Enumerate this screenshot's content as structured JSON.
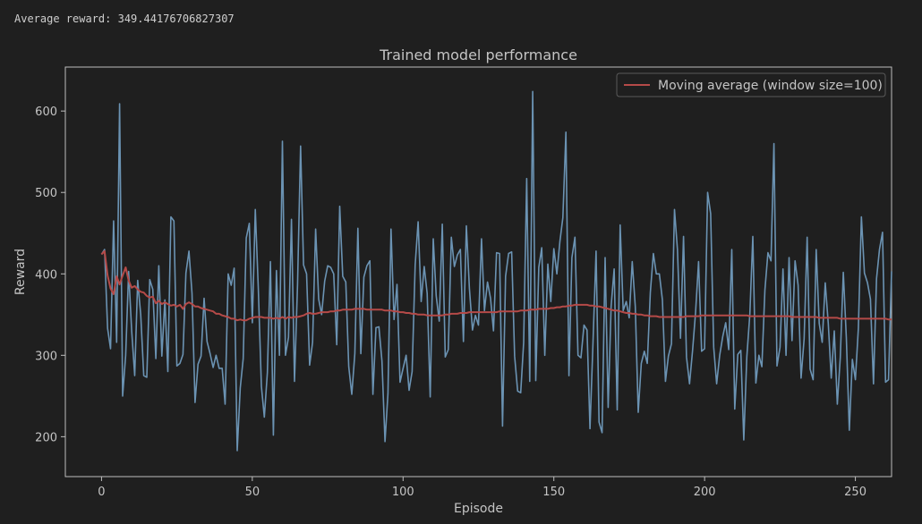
{
  "output": {
    "text": "Average reward: 349.44176706827307"
  },
  "chart_data": {
    "type": "line",
    "title": "Trained model performance",
    "xlabel": "Episode",
    "ylabel": "Reward",
    "xlim": [
      -12,
      262
    ],
    "ylim": [
      151,
      654
    ],
    "xticks": [
      0,
      50,
      100,
      150,
      200,
      250
    ],
    "yticks": [
      200,
      300,
      400,
      500,
      600
    ],
    "grid": false,
    "legend": {
      "position": "top-right",
      "label": "Moving average (window size=100)"
    },
    "colors": {
      "reward": "#6b93b3",
      "moving_average": "#b54a48",
      "background": "#1f1f1f",
      "axes": "#c4c4c4"
    },
    "series": [
      {
        "key": "reward",
        "values": [
          424,
          430,
          333,
          308,
          465,
          316,
          609,
          250,
          300,
          403,
          330,
          275,
          392,
          350,
          275,
          273,
          393,
          381,
          296,
          410,
          299,
          368,
          280,
          470,
          465,
          287,
          290,
          301,
          401,
          428,
          376,
          242,
          289,
          299,
          370,
          317,
          302,
          285,
          300,
          284,
          284,
          240,
          400,
          386,
          407,
          183,
          260,
          296,
          444,
          462,
          340,
          479,
          381,
          262,
          224,
          279,
          415,
          202,
          404,
          300,
          563,
          300,
          322,
          467,
          268,
          387,
          557,
          411,
          400,
          288,
          316,
          455,
          369,
          350,
          391,
          410,
          408,
          400,
          313,
          483,
          397,
          390,
          286,
          252,
          302,
          456,
          302,
          396,
          410,
          416,
          252,
          334,
          335,
          293,
          194,
          253,
          455,
          344,
          387,
          267,
          284,
          300,
          257,
          280,
          411,
          464,
          366,
          409,
          376,
          249,
          443,
          373,
          342,
          461,
          298,
          307,
          445,
          409,
          423,
          430,
          317,
          459,
          382,
          331,
          349,
          337,
          443,
          355,
          390,
          370,
          330,
          426,
          425,
          213,
          397,
          425,
          427,
          299,
          256,
          254,
          316,
          517,
          268,
          624,
          269,
          408,
          432,
          300,
          412,
          366,
          431,
          400,
          440,
          469,
          574,
          275,
          420,
          445,
          300,
          297,
          337,
          331,
          210,
          317,
          428,
          218,
          205,
          420,
          236,
          360,
          406,
          233,
          460,
          355,
          366,
          346,
          415,
          360,
          230,
          290,
          305,
          290,
          377,
          425,
          400,
          400,
          368,
          268,
          299,
          314,
          479,
          430,
          321,
          446,
          298,
          265,
          306,
          352,
          415,
          305,
          308,
          500,
          474,
          310,
          265,
          300,
          323,
          340,
          307,
          430,
          234,
          301,
          306,
          196,
          298,
          351,
          446,
          266,
          300,
          286,
          380,
          426,
          416,
          560,
          287,
          310,
          406,
          300,
          420,
          318,
          416,
          386,
          272,
          320,
          445,
          283,
          270,
          430,
          339,
          316,
          389,
          339,
          272,
          330,
          240,
          297,
          402,
          321,
          208,
          295,
          270,
          333,
          470,
          401,
          389,
          369,
          265,
          394,
          430,
          451,
          267,
          270,
          403
        ]
      },
      {
        "key": "moving_average",
        "name": "Moving average (window size=100)",
        "values": [
          424,
          428,
          398,
          382,
          375,
          397,
          387,
          398,
          408,
          392,
          383,
          385,
          381,
          378,
          377,
          373,
          371,
          372,
          364,
          367,
          363,
          365,
          363,
          361,
          362,
          360,
          362,
          357,
          363,
          365,
          363,
          360,
          360,
          358,
          357,
          356,
          355,
          354,
          351,
          351,
          349,
          348,
          347,
          345,
          345,
          343,
          344,
          343,
          343,
          345,
          346,
          347,
          347,
          347,
          346,
          346,
          346,
          345,
          346,
          345,
          347,
          345,
          347,
          346,
          347,
          347,
          348,
          349,
          351,
          352,
          351,
          351,
          352,
          353,
          353,
          353,
          354,
          354,
          355,
          355,
          356,
          356,
          356,
          356,
          357,
          357,
          357,
          357,
          356,
          356,
          356,
          356,
          356,
          356,
          355,
          355,
          355,
          354,
          354,
          353,
          353,
          352,
          352,
          351,
          351,
          350,
          350,
          350,
          349,
          349,
          349,
          349,
          349,
          349,
          350,
          350,
          351,
          351,
          351,
          352,
          352,
          352,
          353,
          353,
          353,
          353,
          353,
          353,
          353,
          353,
          353,
          353,
          354,
          354,
          354,
          354,
          354,
          354,
          354,
          355,
          355,
          355,
          356,
          356,
          356,
          357,
          357,
          357,
          357,
          358,
          358,
          359,
          359,
          360,
          360,
          361,
          361,
          362,
          362,
          362,
          362,
          362,
          361,
          361,
          360,
          360,
          359,
          358,
          357,
          356,
          355,
          355,
          354,
          353,
          352,
          352,
          351,
          351,
          350,
          350,
          349,
          349,
          348,
          348,
          348,
          347,
          347,
          347,
          347,
          347,
          347,
          347,
          347,
          347,
          348,
          348,
          348,
          348,
          348,
          349,
          349,
          349,
          349,
          349,
          349,
          349,
          349,
          349,
          349,
          349,
          349,
          349,
          349,
          349,
          349,
          348,
          348,
          348,
          348,
          348,
          348,
          348,
          348,
          348,
          348,
          348,
          348,
          348,
          348,
          347,
          347,
          347,
          347,
          347,
          347,
          347,
          347,
          347,
          346,
          346,
          346,
          346,
          346,
          346,
          346,
          345,
          345,
          345,
          345,
          345,
          345,
          345,
          345,
          345,
          345,
          345,
          345,
          345,
          345,
          345,
          345,
          344,
          344
        ]
      }
    ]
  }
}
